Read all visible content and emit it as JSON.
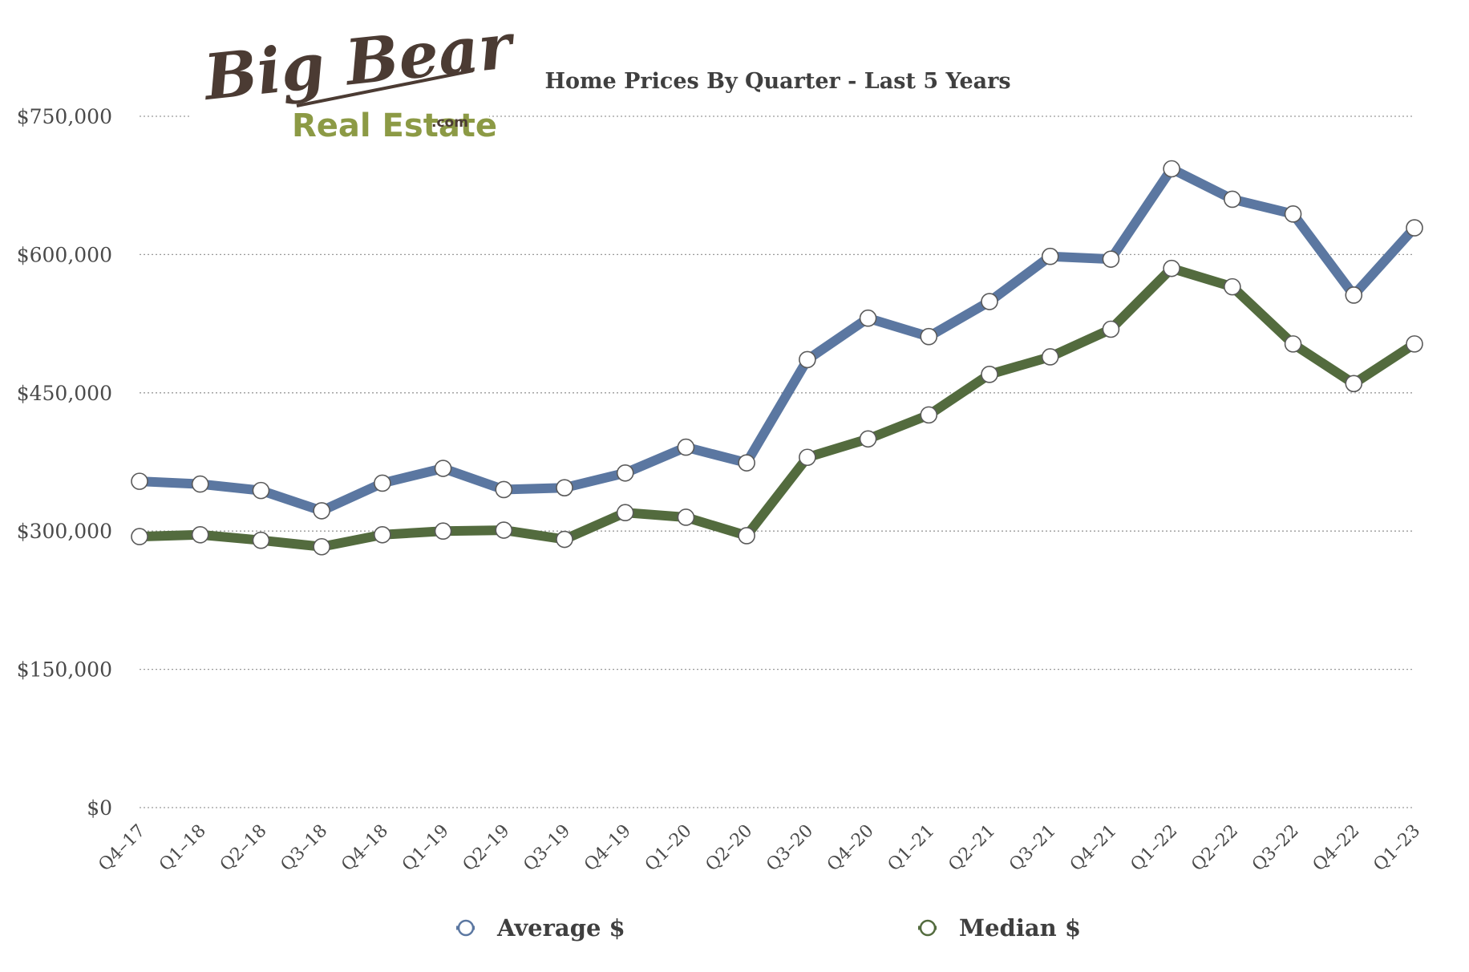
{
  "logo": {
    "line1": "Big Bear",
    "line2": "Real Estate",
    "suffix": ".com"
  },
  "chart_data": {
    "type": "line",
    "title": "Home Prices By Quarter - Last 5 Years",
    "xlabel": "",
    "ylabel": "",
    "ylim": [
      0,
      750000
    ],
    "yticks": [
      0,
      150000,
      300000,
      450000,
      600000,
      750000
    ],
    "ytick_labels": [
      "$0",
      "$150,000",
      "$300,000",
      "$450,000",
      "$600,000",
      "$750,000"
    ],
    "grid": true,
    "legend_position": "bottom",
    "categories": [
      "Q4–17",
      "Q1–18",
      "Q2–18",
      "Q3–18",
      "Q4–18",
      "Q1–19",
      "Q2–19",
      "Q3–19",
      "Q4–19",
      "Q1–20",
      "Q2–20",
      "Q3–20",
      "Q4–20",
      "Q1–21",
      "Q2–21",
      "Q3–21",
      "Q4–21",
      "Q1–22",
      "Q2–22",
      "Q3–22",
      "Q4–22",
      "Q1–23"
    ],
    "series": [
      {
        "name": "Average $",
        "color": "#5b77a1",
        "values": [
          354000,
          351000,
          344000,
          322000,
          352000,
          368000,
          345000,
          347000,
          363000,
          391000,
          374000,
          486000,
          531000,
          511000,
          549000,
          598000,
          595000,
          693000,
          660000,
          644000,
          556000,
          629000
        ]
      },
      {
        "name": "Median $",
        "color": "#536b3e",
        "values": [
          294000,
          296000,
          290000,
          283000,
          296000,
          300000,
          301000,
          291000,
          320000,
          315000,
          295000,
          380000,
          400000,
          426000,
          470000,
          489000,
          519000,
          585000,
          565000,
          503000,
          460000,
          503000
        ]
      }
    ]
  }
}
